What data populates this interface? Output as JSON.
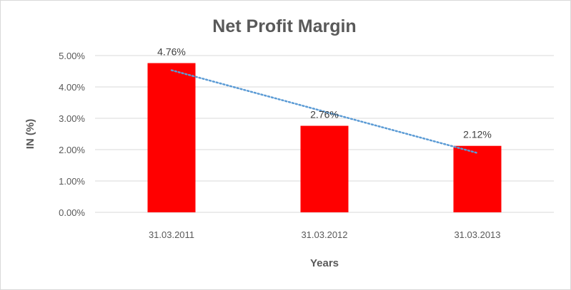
{
  "chart_data": {
    "type": "bar",
    "title": "Net Profit Margin",
    "xlabel": "Years",
    "ylabel": "IN (%)",
    "categories": [
      "31.03.2011",
      "31.03.2012",
      "31.03.2013"
    ],
    "values": [
      4.76,
      2.76,
      2.12
    ],
    "data_labels": [
      "4.76%",
      "2.76%",
      "2.12%"
    ],
    "ylim": [
      0,
      5
    ],
    "yticks": [
      0,
      1,
      2,
      3,
      4,
      5
    ],
    "ytick_labels": [
      "0.00%",
      "1.00%",
      "2.00%",
      "3.00%",
      "4.00%",
      "5.00%"
    ],
    "grid": true,
    "trendline": {
      "type": "linear",
      "style": "dotted"
    },
    "colors": {
      "bar": "#ff0000",
      "trendline": "#5b9bd5",
      "grid": "#d9d9d9"
    }
  }
}
